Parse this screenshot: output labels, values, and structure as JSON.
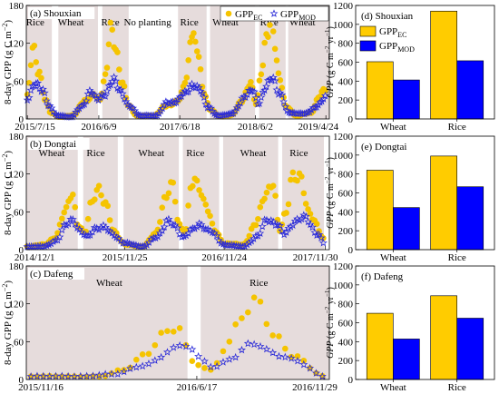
{
  "colors": {
    "ec": "#f5c400",
    "mod": "#2a2ad8",
    "bar_ec": "#ffcc00",
    "bar_mod": "#0000ff",
    "shade": "#e6dcdc"
  },
  "time_panels": {
    "ylabel_prefix": "8-day GPP (g C m",
    "ylabel_exp": "−2",
    "ylabel_suffix": ")",
    "legend": {
      "ec": "GPP",
      "ec_sub": "EC",
      "mod": "GPP",
      "mod_sub": "MOD"
    }
  },
  "bar_panels": {
    "ylabel_gpp": "GPP",
    "ylabel_unit": " (g C m",
    "ylabel_exp1": "−2",
    "ylabel_mid": " yr",
    "ylabel_exp2": "−1",
    "ylabel_end": ")",
    "legend": {
      "ec": "GPP",
      "ec_sub": "EC",
      "mod": "GPP",
      "mod_sub": "MOD"
    }
  },
  "chart_data": [
    {
      "type": "scatter",
      "panel": "a",
      "title": "(a) Shouxian",
      "ylim": [
        0,
        180
      ],
      "yticks": [
        0,
        60,
        120,
        180
      ],
      "xlim": [
        "2015-07-10",
        "2019-05-10"
      ],
      "xticks": [
        {
          "date": "2015-07-15",
          "label": "2015/7/15"
        },
        {
          "date": "2016-06-09",
          "label": "2016/6/9"
        },
        {
          "date": "2017-06-18",
          "label": "2017/6/18"
        },
        {
          "date": "2018-06-02",
          "label": "2018/6/2"
        },
        {
          "date": "2019-04-24",
          "label": "2019/4/24"
        }
      ],
      "season_labels": [
        {
          "text": "Rice",
          "date": "2015-08-20"
        },
        {
          "text": "Wheat",
          "date": "2016-02-01"
        },
        {
          "text": "Rice",
          "date": "2016-08-01"
        },
        {
          "text": "No planting",
          "date": "2017-01-20"
        },
        {
          "text": "Rice",
          "date": "2017-08-01"
        },
        {
          "text": "Wheat",
          "date": "2018-01-15"
        },
        {
          "text": "Rice",
          "date": "2018-08-05"
        },
        {
          "text": "Wheat",
          "date": "2019-01-05"
        }
      ],
      "shaded": [
        [
          "2015-07-10",
          "2015-11-05"
        ],
        [
          "2015-12-05",
          "2016-06-05"
        ],
        [
          "2016-06-25",
          "2016-10-25"
        ],
        [
          "2017-06-10",
          "2017-10-20"
        ],
        [
          "2017-11-05",
          "2018-06-01"
        ],
        [
          "2018-06-20",
          "2018-10-20"
        ],
        [
          "2018-11-01",
          "2019-05-10"
        ]
      ],
      "series": [
        {
          "name": "GPP_EC",
          "anchors": [
            [
              "2015-07-15",
              35
            ],
            [
              "2015-08-10",
              120
            ],
            [
              "2015-09-05",
              75
            ],
            [
              "2015-10-05",
              30
            ],
            [
              "2015-11-01",
              10
            ],
            [
              "2015-12-10",
              3
            ],
            [
              "2016-02-15",
              6
            ],
            [
              "2016-04-05",
              30
            ],
            [
              "2016-05-20",
              38
            ],
            [
              "2016-06-10",
              28
            ],
            [
              "2016-07-10",
              70
            ],
            [
              "2016-08-01",
              140
            ],
            [
              "2016-08-25",
              110
            ],
            [
              "2016-09-25",
              60
            ],
            [
              "2016-10-25",
              20
            ],
            [
              "2016-12-01",
              5
            ],
            [
              "2017-02-15",
              5
            ],
            [
              "2017-04-15",
              20
            ],
            [
              "2017-06-15",
              30
            ],
            [
              "2017-07-20",
              65
            ],
            [
              "2017-08-10",
              145
            ],
            [
              "2017-09-05",
              110
            ],
            [
              "2017-10-05",
              45
            ],
            [
              "2017-11-05",
              15
            ],
            [
              "2017-12-20",
              4
            ],
            [
              "2018-02-15",
              6
            ],
            [
              "2018-04-01",
              30
            ],
            [
              "2018-05-10",
              55
            ],
            [
              "2018-06-05",
              25
            ],
            [
              "2018-07-01",
              80
            ],
            [
              "2018-07-25",
              130
            ],
            [
              "2018-08-20",
              150
            ],
            [
              "2018-09-20",
              70
            ],
            [
              "2018-10-20",
              20
            ],
            [
              "2018-12-10",
              5
            ],
            [
              "2019-02-15",
              10
            ],
            [
              "2019-03-25",
              35
            ],
            [
              "2019-04-24",
              50
            ]
          ]
        },
        {
          "name": "GPP_MOD",
          "anchors": [
            [
              "2015-07-15",
              30
            ],
            [
              "2015-08-20",
              60
            ],
            [
              "2015-09-20",
              45
            ],
            [
              "2015-10-25",
              20
            ],
            [
              "2015-12-01",
              5
            ],
            [
              "2016-02-01",
              3
            ],
            [
              "2016-03-25",
              20
            ],
            [
              "2016-05-01",
              45
            ],
            [
              "2016-06-01",
              30
            ],
            [
              "2016-07-05",
              40
            ],
            [
              "2016-08-15",
              60
            ],
            [
              "2016-09-20",
              45
            ],
            [
              "2016-10-25",
              20
            ],
            [
              "2016-12-20",
              5
            ],
            [
              "2017-03-01",
              5
            ],
            [
              "2017-04-20",
              25
            ],
            [
              "2017-06-01",
              28
            ],
            [
              "2017-07-10",
              40
            ],
            [
              "2017-08-15",
              55
            ],
            [
              "2017-09-20",
              45
            ],
            [
              "2017-10-25",
              20
            ],
            [
              "2017-12-10",
              5
            ],
            [
              "2018-02-15",
              8
            ],
            [
              "2018-04-20",
              38
            ],
            [
              "2018-05-20",
              45
            ],
            [
              "2018-06-15",
              25
            ],
            [
              "2018-07-20",
              50
            ],
            [
              "2018-08-20",
              65
            ],
            [
              "2018-09-25",
              40
            ],
            [
              "2018-11-01",
              10
            ],
            [
              "2019-01-15",
              8
            ],
            [
              "2019-03-15",
              20
            ],
            [
              "2019-04-24",
              35
            ]
          ]
        }
      ]
    },
    {
      "type": "scatter",
      "panel": "b",
      "title": "(b) Dongtai",
      "ylim": [
        0,
        180
      ],
      "yticks": [
        0,
        60,
        120,
        180
      ],
      "xlim": [
        "2014-11-28",
        "2017-12-15"
      ],
      "xticks": [
        {
          "date": "2014-12-01",
          "label": "2014/12/1"
        },
        {
          "date": "2015-11-25",
          "label": "2015/11/25"
        },
        {
          "date": "2016-11-24",
          "label": "2016/11/24"
        },
        {
          "date": "2017-11-30",
          "label": "2017/11/30"
        }
      ],
      "season_labels": [
        {
          "text": "Wheat",
          "date": "2015-03-01"
        },
        {
          "text": "Rice",
          "date": "2015-08-10"
        },
        {
          "text": "Wheat",
          "date": "2016-03-01"
        },
        {
          "text": "Rice",
          "date": "2016-08-10"
        },
        {
          "text": "Wheat",
          "date": "2017-03-10"
        },
        {
          "text": "Rice",
          "date": "2017-08-25"
        }
      ],
      "shaded": [
        [
          "2014-11-28",
          "2015-06-05"
        ],
        [
          "2015-06-25",
          "2015-10-30"
        ],
        [
          "2015-11-20",
          "2016-06-10"
        ],
        [
          "2016-06-25",
          "2016-11-05"
        ],
        [
          "2016-11-20",
          "2017-06-10"
        ],
        [
          "2017-06-25",
          "2017-11-25"
        ]
      ],
      "series": [
        {
          "name": "GPP_EC",
          "anchors": [
            [
              "2014-12-01",
              5
            ],
            [
              "2015-02-01",
              8
            ],
            [
              "2015-03-15",
              20
            ],
            [
              "2015-04-20",
              60
            ],
            [
              "2015-05-15",
              95
            ],
            [
              "2015-06-05",
              40
            ],
            [
              "2015-07-01",
              25
            ],
            [
              "2015-07-25",
              75
            ],
            [
              "2015-08-15",
              100
            ],
            [
              "2015-09-15",
              70
            ],
            [
              "2015-10-15",
              30
            ],
            [
              "2015-11-25",
              8
            ],
            [
              "2016-02-01",
              5
            ],
            [
              "2016-03-15",
              25
            ],
            [
              "2016-04-25",
              85
            ],
            [
              "2016-05-20",
              100
            ],
            [
              "2016-06-10",
              40
            ],
            [
              "2016-07-05",
              30
            ],
            [
              "2016-07-25",
              100
            ],
            [
              "2016-08-20",
              105
            ],
            [
              "2016-09-15",
              75
            ],
            [
              "2016-10-20",
              30
            ],
            [
              "2016-11-24",
              10
            ],
            [
              "2017-02-01",
              8
            ],
            [
              "2017-03-20",
              40
            ],
            [
              "2017-04-25",
              90
            ],
            [
              "2017-05-20",
              110
            ],
            [
              "2017-06-15",
              30
            ],
            [
              "2017-07-10",
              60
            ],
            [
              "2017-07-30",
              120
            ],
            [
              "2017-08-30",
              110
            ],
            [
              "2017-10-01",
              60
            ],
            [
              "2017-11-30",
              15
            ]
          ]
        },
        {
          "name": "GPP_MOD",
          "anchors": [
            [
              "2014-12-01",
              5
            ],
            [
              "2015-02-01",
              5
            ],
            [
              "2015-03-20",
              15
            ],
            [
              "2015-04-25",
              40
            ],
            [
              "2015-05-20",
              50
            ],
            [
              "2015-06-10",
              30
            ],
            [
              "2015-07-10",
              20
            ],
            [
              "2015-08-10",
              35
            ],
            [
              "2015-09-10",
              35
            ],
            [
              "2015-10-10",
              25
            ],
            [
              "2015-11-25",
              10
            ],
            [
              "2016-02-01",
              5
            ],
            [
              "2016-03-20",
              20
            ],
            [
              "2016-05-01",
              45
            ],
            [
              "2016-06-01",
              35
            ],
            [
              "2016-06-25",
              20
            ],
            [
              "2016-07-25",
              30
            ],
            [
              "2016-08-30",
              40
            ],
            [
              "2016-10-01",
              30
            ],
            [
              "2016-11-24",
              8
            ],
            [
              "2017-02-01",
              5
            ],
            [
              "2017-03-25",
              20
            ],
            [
              "2017-05-01",
              50
            ],
            [
              "2017-06-05",
              40
            ],
            [
              "2017-07-01",
              25
            ],
            [
              "2017-08-10",
              45
            ],
            [
              "2017-09-20",
              50
            ],
            [
              "2017-11-01",
              25
            ],
            [
              "2017-11-30",
              8
            ]
          ]
        }
      ]
    },
    {
      "type": "scatter",
      "panel": "c",
      "title": "(c) Dafeng",
      "ylim": [
        0,
        180
      ],
      "yticks": [
        0,
        60,
        120,
        180
      ],
      "xlim": [
        "2015-11-10",
        "2016-12-05"
      ],
      "xticks": [
        {
          "date": "2015-11-16",
          "label": "2015/11/16"
        },
        {
          "date": "2016-06-17",
          "label": "2016/6/17"
        },
        {
          "date": "2016-11-29",
          "label": "2016/11/29"
        }
      ],
      "season_labels": [
        {
          "text": "Wheat",
          "date": "2016-02-25"
        },
        {
          "text": "Rice",
          "date": "2016-09-05"
        }
      ],
      "shaded": [
        [
          "2015-11-10",
          "2016-06-05"
        ],
        [
          "2016-06-22",
          "2016-12-05"
        ]
      ],
      "series": [
        {
          "name": "GPP_EC",
          "anchors": [
            [
              "2015-11-16",
              5
            ],
            [
              "2016-01-01",
              5
            ],
            [
              "2016-02-15",
              5
            ],
            [
              "2016-03-15",
              15
            ],
            [
              "2016-04-10",
              40
            ],
            [
              "2016-05-05",
              70
            ],
            [
              "2016-05-25",
              80
            ],
            [
              "2016-06-10",
              30
            ],
            [
              "2016-07-05",
              15
            ],
            [
              "2016-07-25",
              50
            ],
            [
              "2016-08-15",
              100
            ],
            [
              "2016-09-05",
              130
            ],
            [
              "2016-09-25",
              70
            ],
            [
              "2016-10-20",
              35
            ],
            [
              "2016-11-29",
              5
            ]
          ]
        },
        {
          "name": "GPP_MOD",
          "anchors": [
            [
              "2015-11-16",
              5
            ],
            [
              "2016-01-15",
              5
            ],
            [
              "2016-03-01",
              8
            ],
            [
              "2016-04-15",
              25
            ],
            [
              "2016-05-15",
              45
            ],
            [
              "2016-06-05",
              55
            ],
            [
              "2016-06-20",
              35
            ],
            [
              "2016-07-10",
              20
            ],
            [
              "2016-08-05",
              35
            ],
            [
              "2016-08-30",
              60
            ],
            [
              "2016-09-20",
              45
            ],
            [
              "2016-10-20",
              30
            ],
            [
              "2016-11-29",
              5
            ]
          ]
        }
      ]
    },
    {
      "type": "bar",
      "panel": "d",
      "title": "(d) Shouxian",
      "categories": [
        "Wheat",
        "Rice"
      ],
      "ylim": [
        0,
        1200
      ],
      "yticks": [
        0,
        200,
        400,
        600,
        800,
        1000,
        1200
      ],
      "series": [
        {
          "name": "GPP_EC",
          "values": [
            605,
            1140
          ]
        },
        {
          "name": "GPP_MOD",
          "values": [
            412,
            615
          ]
        }
      ]
    },
    {
      "type": "bar",
      "panel": "e",
      "title": "(e) Dongtai",
      "categories": [
        "Wheat",
        "Rice"
      ],
      "ylim": [
        0,
        1200
      ],
      "yticks": [
        0,
        200,
        400,
        600,
        800,
        1000,
        1200
      ],
      "series": [
        {
          "name": "GPP_EC",
          "values": [
            840,
            990
          ]
        },
        {
          "name": "GPP_MOD",
          "values": [
            445,
            665
          ]
        }
      ]
    },
    {
      "type": "bar",
      "panel": "f",
      "title": "(f) Dafeng",
      "categories": [
        "Wheat",
        "Rice"
      ],
      "ylim": [
        0,
        1200
      ],
      "yticks": [
        0,
        200,
        400,
        600,
        800,
        1000,
        1200
      ],
      "series": [
        {
          "name": "GPP_EC",
          "values": [
            700,
            885
          ]
        },
        {
          "name": "GPP_MOD",
          "values": [
            428,
            648
          ]
        }
      ]
    }
  ]
}
